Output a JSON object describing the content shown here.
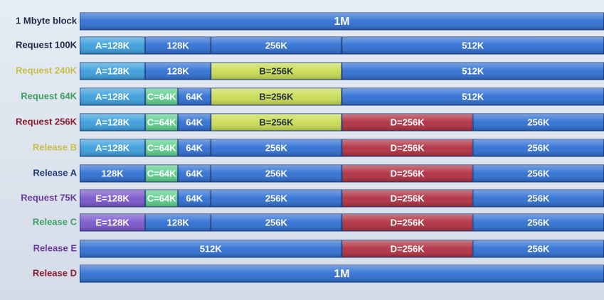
{
  "rows": [
    {
      "label": "1 Mbyte block",
      "label_color": "#1c2a48",
      "blocks": [
        {
          "text": "1M",
          "color": "#2f6fd2"
        }
      ]
    },
    {
      "label": "Request 100K",
      "label_color": "#1c2a48",
      "blocks": [
        {
          "text": "A=128K",
          "color": "#3a9edc"
        },
        {
          "text": "128K",
          "color": "#2f6fd2"
        },
        {
          "text": "256K",
          "color": "#2f6fd2"
        },
        {
          "text": "512K",
          "color": "#2f6fd2"
        }
      ]
    },
    {
      "label": "Request 240K",
      "label_color": "#c8c048",
      "blocks": [
        {
          "text": "A=128K",
          "color": "#3a9edc"
        },
        {
          "text": "128K",
          "color": "#2f6fd2"
        },
        {
          "text": "B=256K",
          "color": "#c9dc52"
        },
        {
          "text": "512K",
          "color": "#2f6fd2"
        }
      ]
    },
    {
      "label": "Request 64K",
      "label_color": "#3f9e62",
      "blocks": [
        {
          "text": "A=128K",
          "color": "#3a9edc"
        },
        {
          "text": "C=64K",
          "color": "#5ccf8c"
        },
        {
          "text": "64K",
          "color": "#2f6fd2"
        },
        {
          "text": "B=256K",
          "color": "#c9dc52"
        },
        {
          "text": "512K",
          "color": "#2f6fd2"
        }
      ]
    },
    {
      "label": "Request 256K",
      "label_color": "#8a1a2c",
      "blocks": [
        {
          "text": "A=128K",
          "color": "#3a9edc"
        },
        {
          "text": "C=64K",
          "color": "#5ccf8c"
        },
        {
          "text": "64K",
          "color": "#2f6fd2"
        },
        {
          "text": "B=256K",
          "color": "#c9dc52"
        },
        {
          "text": "D=256K",
          "color": "#b02f40"
        },
        {
          "text": "256K",
          "color": "#2f6fd2"
        }
      ]
    },
    {
      "label": "Release B",
      "label_color": "#c8c048",
      "blocks": [
        {
          "text": "A=128K",
          "color": "#3a9edc"
        },
        {
          "text": "C=64K",
          "color": "#5ccf8c"
        },
        {
          "text": "64K",
          "color": "#2f6fd2"
        },
        {
          "text": "256K",
          "color": "#2f6fd2"
        },
        {
          "text": "D=256K",
          "color": "#b02f40"
        },
        {
          "text": "256K",
          "color": "#2f6fd2"
        }
      ]
    },
    {
      "label": "Release A",
      "label_color": "#1f3a78",
      "blocks": [
        {
          "text": "128K",
          "color": "#2f6fd2"
        },
        {
          "text": "C=64K",
          "color": "#5ccf8c"
        },
        {
          "text": "64K",
          "color": "#2f6fd2"
        },
        {
          "text": "256K",
          "color": "#2f6fd2"
        },
        {
          "text": "D=256K",
          "color": "#b02f40"
        },
        {
          "text": "256K",
          "color": "#2f6fd2"
        }
      ]
    },
    {
      "label": "Request 75K",
      "label_color": "#6a3a9c",
      "blocks": [
        {
          "text": "E=128K",
          "color": "#7a56cc"
        },
        {
          "text": "C=64K",
          "color": "#5ccf8c"
        },
        {
          "text": "64K",
          "color": "#2f6fd2"
        },
        {
          "text": "256K",
          "color": "#2f6fd2"
        },
        {
          "text": "D=256K",
          "color": "#b02f40"
        },
        {
          "text": "256K",
          "color": "#2f6fd2"
        }
      ]
    },
    {
      "label": "Release C",
      "label_color": "#3f9e62",
      "blocks": [
        {
          "text": "E=128K",
          "color": "#7a56cc"
        },
        {
          "text": "128K",
          "color": "#2f6fd2"
        },
        {
          "text": "256K",
          "color": "#2f6fd2"
        },
        {
          "text": "D=256K",
          "color": "#b02f40"
        },
        {
          "text": "256K",
          "color": "#2f6fd2"
        }
      ]
    },
    {
      "label": "Release E",
      "label_color": "#6a3a9c",
      "blocks": [
        {
          "text": "512K",
          "color": "#2f6fd2"
        },
        {
          "text": "D=256K",
          "color": "#b02f40"
        },
        {
          "text": "256K",
          "color": "#2f6fd2"
        }
      ]
    },
    {
      "label": "Release D",
      "label_color": "#8a1a2c",
      "blocks": [
        {
          "text": "1M",
          "color": "#2f6fd2"
        }
      ]
    }
  ]
}
